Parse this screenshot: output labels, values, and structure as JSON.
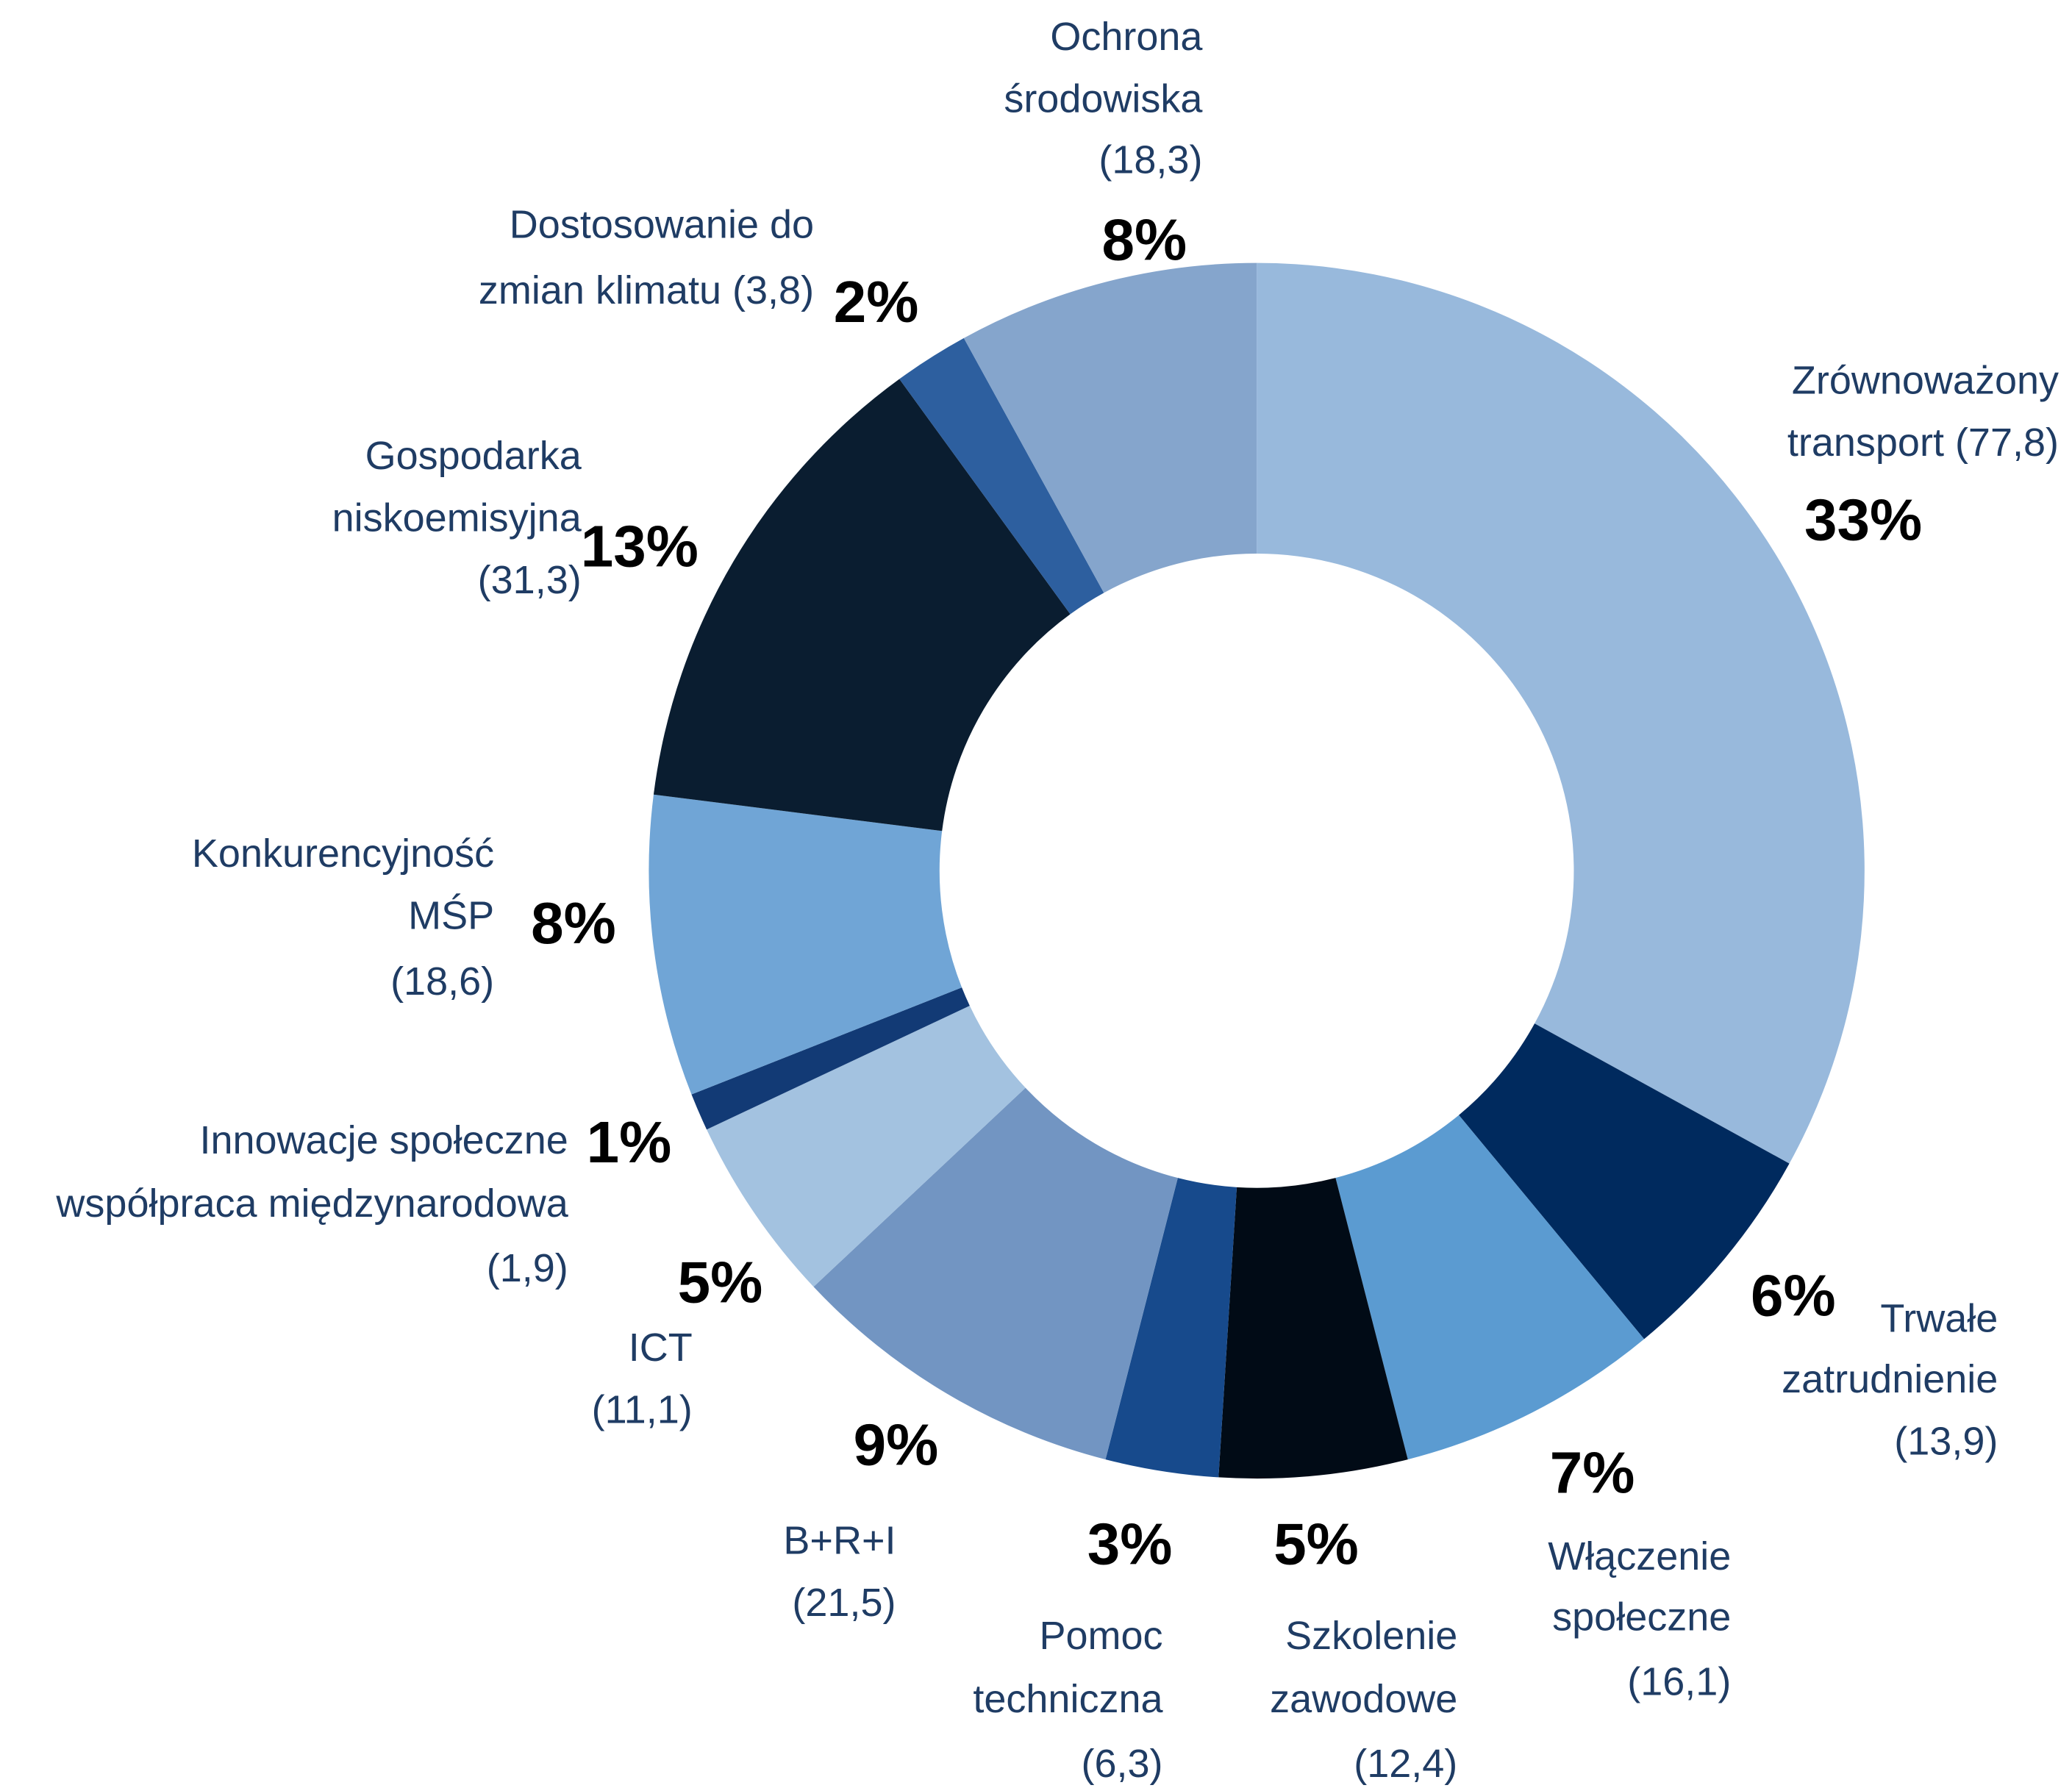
{
  "chart_data": {
    "type": "donut",
    "categories": [
      [
        "Zrównoważony",
        "transport (77,8)"
      ],
      [
        "Trwałe",
        "zatrudnienie",
        "(13,9)"
      ],
      [
        "Włączenie",
        "społeczne",
        "(16,1)"
      ],
      [
        "Szkolenie",
        "zawodowe",
        "(12,4)"
      ],
      [
        "Pomoc",
        "techniczna",
        "(6,3)"
      ],
      [
        "B+R+I",
        "(21,5)"
      ],
      [
        "ICT",
        "(11,1)"
      ],
      [
        "Innowacje społeczne",
        "współpraca międzynarodowa",
        "(1,9)"
      ],
      [
        "Konkurencyjność",
        "MŚP",
        "(18,6)"
      ],
      [
        "Gospodarka",
        "niskoemisyjna",
        "(31,3)"
      ],
      [
        "Dostosowanie do",
        "zmian klimatu (3,8)"
      ],
      [
        "Ochrona",
        "środowiska",
        "(18,3)"
      ]
    ],
    "values": [
      33,
      6,
      7,
      5,
      3,
      9,
      5,
      1,
      8,
      13,
      2,
      8
    ],
    "value_labels": [
      "33%",
      "6%",
      "7%",
      "5%",
      "3%",
      "9%",
      "5%",
      "1%",
      "8%",
      "13%",
      "2%",
      "8%"
    ],
    "colors": [
      "#98b9dc",
      "#002a5e",
      "#5b9bd1",
      "#010b16",
      "#174a8c",
      "#7295c2",
      "#a3c2e0",
      "#123a75",
      "#70a5d6",
      "#0a1d30",
      "#2d5f9f",
      "#85a5cc"
    ]
  }
}
